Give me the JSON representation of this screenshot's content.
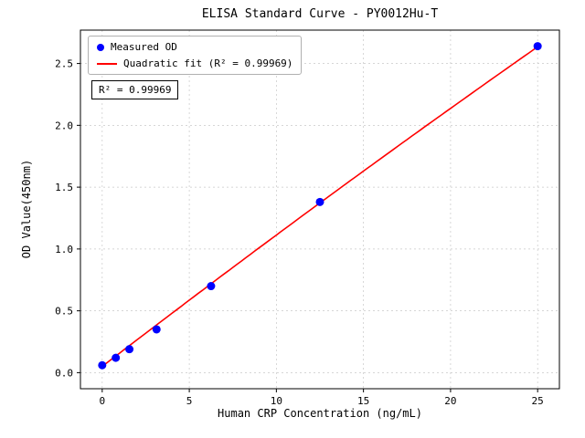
{
  "chart_data": {
    "type": "scatter",
    "title": "ELISA Standard Curve - PY0012Hu-T",
    "xlabel": "Human CRP Concentration (ng/mL)",
    "ylabel": "OD Value(450nm)",
    "xlim": [
      -1.25,
      26.25
    ],
    "ylim": [
      -0.13,
      2.77
    ],
    "x_ticks": [
      0,
      5,
      10,
      15,
      20,
      25
    ],
    "x_tick_labels": [
      "0",
      "5",
      "10",
      "15",
      "20",
      "25"
    ],
    "y_ticks": [
      0,
      0.5,
      1.0,
      1.5,
      2.0,
      2.5
    ],
    "y_tick_labels": [
      "0.0",
      "0.5",
      "1.0",
      "1.5",
      "2.0",
      "2.5"
    ],
    "grid": true,
    "legend_position": "upper left",
    "series": [
      {
        "name": "Measured OD",
        "type": "scatter",
        "color": "#0000ff",
        "x": [
          0,
          0.78,
          1.56,
          3.12,
          6.25,
          12.5,
          25
        ],
        "y": [
          0.06,
          0.12,
          0.19,
          0.35,
          0.7,
          1.38,
          2.64
        ]
      },
      {
        "name": "Quadratic fit (R² = 0.99969)",
        "type": "line",
        "color": "#ff0000",
        "fit": {
          "a": -0.000192,
          "b": 0.1082,
          "c": 0.05
        },
        "x_range": [
          0,
          25
        ]
      }
    ],
    "annotation": "R² = 0.99969",
    "r_squared": 0.99969
  }
}
